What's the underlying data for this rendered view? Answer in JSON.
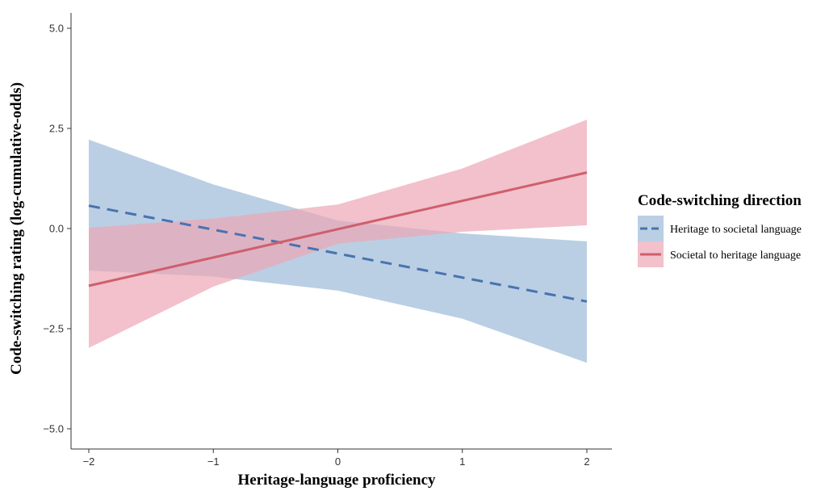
{
  "chart_data": {
    "type": "line",
    "xlabel": "Heritage-language proficiency",
    "ylabel": "Code-switching rating (log-cumulative-odds)",
    "xlim": [
      -2,
      2
    ],
    "ylim": [
      -5,
      5
    ],
    "x_ticks": [
      {
        "value": -2,
        "label": "−2"
      },
      {
        "value": -1,
        "label": "−1"
      },
      {
        "value": 0,
        "label": "0"
      },
      {
        "value": 1,
        "label": "1"
      },
      {
        "value": 2,
        "label": "2"
      }
    ],
    "y_ticks": [
      {
        "value": -5,
        "label": "−5.0"
      },
      {
        "value": -2.5,
        "label": "−2.5"
      },
      {
        "value": 0,
        "label": "0.0"
      },
      {
        "value": 2.5,
        "label": "2.5"
      },
      {
        "value": 5,
        "label": "5.0"
      }
    ],
    "grid": false,
    "legend": {
      "title": "Code-switching direction",
      "position": "right"
    },
    "series": [
      {
        "name": "Heritage to societal language",
        "color": "#4a72b0",
        "ribbon_color": "#9dbad9",
        "line_style": "dashed",
        "x": [
          -2,
          2
        ],
        "y": [
          0.57,
          -1.82
        ],
        "ribbon": {
          "x": [
            -2,
            -1,
            0,
            1,
            2
          ],
          "lower": [
            -1.05,
            -1.2,
            -1.55,
            -2.25,
            -3.35
          ],
          "upper": [
            2.22,
            1.1,
            0.2,
            -0.12,
            -0.32
          ]
        }
      },
      {
        "name": "Societal to heritage language",
        "color": "#cf5f6d",
        "ribbon_color": "#eca7b5",
        "line_style": "solid",
        "x": [
          -2,
          2
        ],
        "y": [
          -1.43,
          1.4
        ],
        "ribbon": {
          "x": [
            -2,
            -1,
            0,
            1,
            2
          ],
          "lower": [
            -2.98,
            -1.45,
            -0.38,
            -0.08,
            0.08
          ],
          "upper": [
            0.02,
            0.25,
            0.6,
            1.5,
            2.72
          ]
        }
      }
    ]
  }
}
